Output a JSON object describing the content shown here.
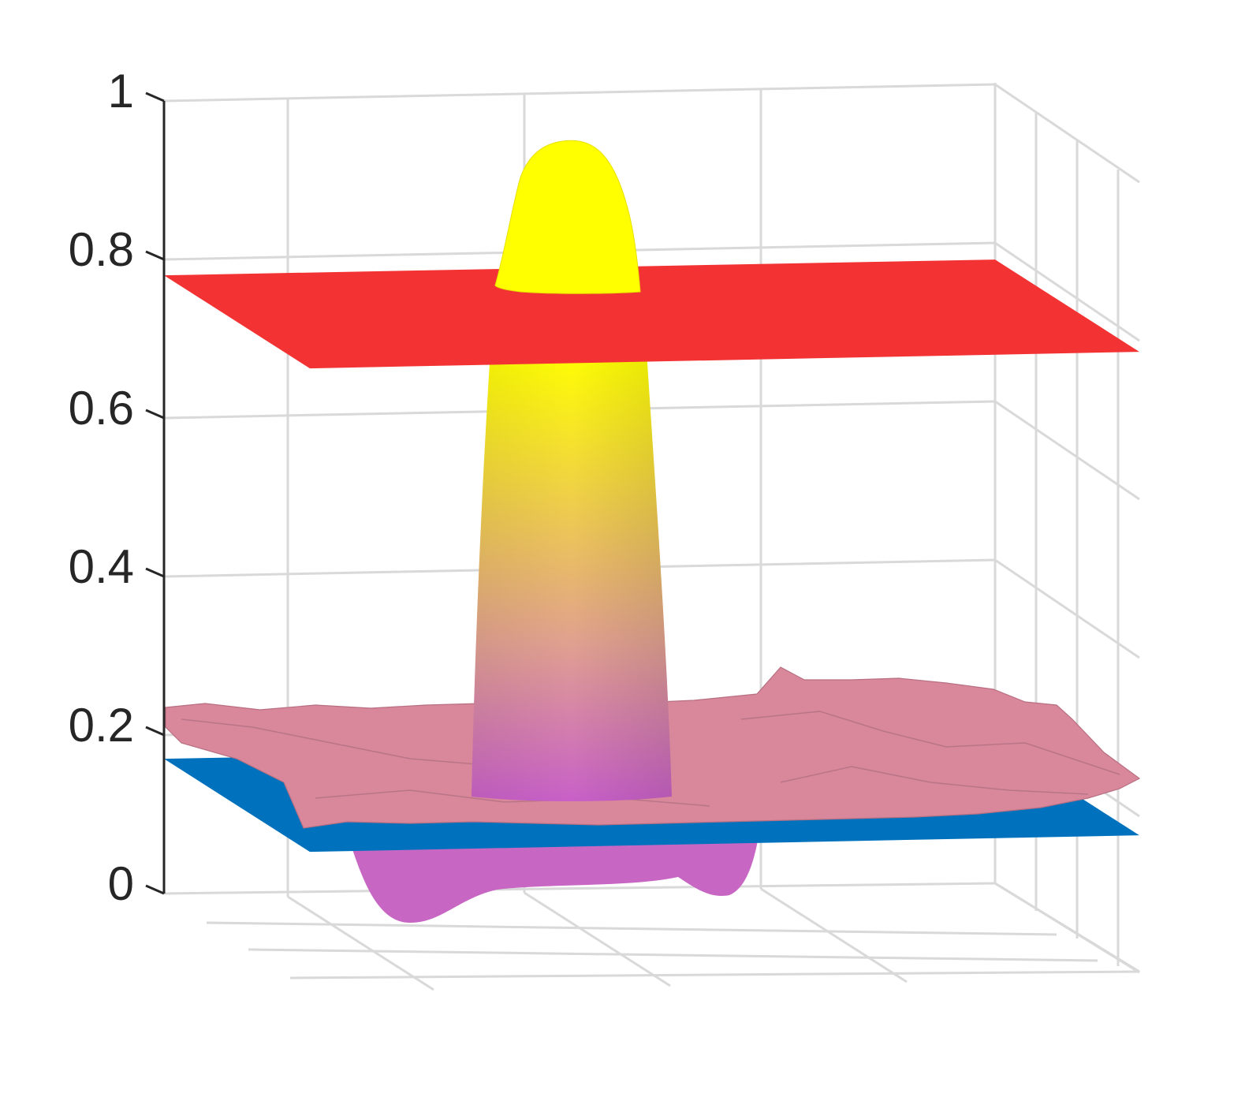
{
  "chart_data": {
    "type": "surface3d",
    "title": "",
    "xlabel": "",
    "ylabel": "",
    "zlabel": "",
    "zlim": [
      0,
      1
    ],
    "z_ticks": [
      0,
      0.2,
      0.4,
      0.6,
      0.8,
      1
    ],
    "z_tick_labels": [
      "0",
      "0.2",
      "0.4",
      "0.6",
      "0.8",
      "1"
    ],
    "grid": true,
    "surfaces": [
      {
        "kind": "plane",
        "z": 0.78,
        "color": "#f33333"
      },
      {
        "kind": "plane",
        "z": 0.17,
        "color": "#0072bd"
      },
      {
        "kind": "noisy-sheet",
        "z_mean": 0.2,
        "color": "#d9879a"
      },
      {
        "kind": "peak",
        "z_min": 0.02,
        "z_max": 0.95,
        "color_low": "#c860c8",
        "color_high": "#ffff00"
      }
    ]
  }
}
